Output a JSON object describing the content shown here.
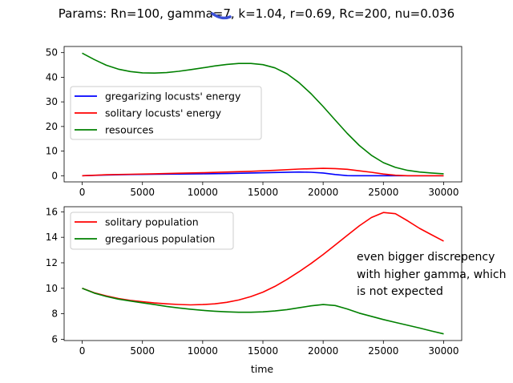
{
  "figure": {
    "suptitle": "Params: Rn=100, gamma=7, k=1.04, r=0.69, Rc=200, nu=0.036",
    "annotation": [
      "even bigger discrepency",
      "with higher gamma, which",
      "is not expected"
    ],
    "scribble_color": "#3a4fd6"
  },
  "chart_data": [
    {
      "type": "line",
      "title": "",
      "xlabel": "",
      "ylabel": "",
      "xlim": [
        -1500,
        31500
      ],
      "ylim": [
        -2.5,
        52.5
      ],
      "xticks": [
        0,
        5000,
        10000,
        15000,
        20000,
        25000,
        30000
      ],
      "yticks": [
        0,
        10,
        20,
        30,
        40,
        50
      ],
      "grid": false,
      "legend_position": "center-left",
      "series": [
        {
          "name": "gregarizing locusts' energy",
          "color": "#0000ff",
          "x": [
            0,
            2000,
            4000,
            6000,
            8000,
            10000,
            12000,
            14000,
            16000,
            18000,
            19000,
            20000,
            21000,
            22000,
            22500,
            23000,
            25000,
            27000,
            30000
          ],
          "y": [
            0,
            0.3,
            0.5,
            0.6,
            0.7,
            0.8,
            0.9,
            1.1,
            1.3,
            1.5,
            1.4,
            1.1,
            0.5,
            0.05,
            0,
            0,
            0,
            0,
            0
          ]
        },
        {
          "name": "solitary locusts' energy",
          "color": "#ff0000",
          "x": [
            0,
            2000,
            4000,
            6000,
            8000,
            10000,
            12000,
            14000,
            16000,
            18000,
            20000,
            21000,
            22000,
            23000,
            24000,
            25000,
            26000,
            27000,
            28000,
            30000
          ],
          "y": [
            0,
            0.4,
            0.6,
            0.8,
            1.0,
            1.2,
            1.5,
            1.8,
            2.2,
            2.7,
            3.0,
            2.9,
            2.6,
            2.0,
            1.4,
            0.7,
            0.2,
            0,
            0,
            0
          ]
        },
        {
          "name": "resources",
          "color": "#008000",
          "x": [
            0,
            1000,
            2000,
            3000,
            4000,
            5000,
            6000,
            7000,
            8000,
            9000,
            10000,
            11000,
            12000,
            13000,
            14000,
            15000,
            16000,
            17000,
            18000,
            19000,
            20000,
            21000,
            22000,
            23000,
            24000,
            25000,
            26000,
            27000,
            28000,
            29000,
            30000
          ],
          "y": [
            49.8,
            47.2,
            44.9,
            43.3,
            42.3,
            41.8,
            41.7,
            41.9,
            42.4,
            43.1,
            43.8,
            44.6,
            45.2,
            45.6,
            45.6,
            45.1,
            43.8,
            41.4,
            37.8,
            33.3,
            28.1,
            22.6,
            17.2,
            12.3,
            8.3,
            5.3,
            3.4,
            2.2,
            1.5,
            1.1,
            0.8
          ]
        }
      ]
    },
    {
      "type": "line",
      "title": "",
      "xlabel": "time",
      "ylabel": "",
      "xlim": [
        -1500,
        31500
      ],
      "ylim": [
        5.9,
        16.4
      ],
      "xticks": [
        0,
        5000,
        10000,
        15000,
        20000,
        25000,
        30000
      ],
      "yticks": [
        6,
        8,
        10,
        12,
        14,
        16
      ],
      "grid": false,
      "legend_position": "top-left",
      "series": [
        {
          "name": "solitary population",
          "color": "#ff0000",
          "x": [
            0,
            1000,
            2000,
            3000,
            4000,
            5000,
            6000,
            7000,
            8000,
            9000,
            10000,
            11000,
            12000,
            13000,
            14000,
            15000,
            16000,
            17000,
            18000,
            19000,
            20000,
            21000,
            22000,
            23000,
            24000,
            25000,
            26000,
            27000,
            28000,
            29000,
            30000
          ],
          "y": [
            10.0,
            9.65,
            9.4,
            9.2,
            9.05,
            8.95,
            8.85,
            8.78,
            8.73,
            8.7,
            8.72,
            8.78,
            8.9,
            9.08,
            9.35,
            9.7,
            10.15,
            10.7,
            11.3,
            11.95,
            12.65,
            13.4,
            14.15,
            14.9,
            15.55,
            15.95,
            15.85,
            15.3,
            14.7,
            14.2,
            13.7
          ]
        },
        {
          "name": "gregarious population",
          "color": "#008000",
          "x": [
            0,
            1000,
            2000,
            3000,
            4000,
            5000,
            6000,
            7000,
            8000,
            9000,
            10000,
            11000,
            12000,
            13000,
            14000,
            15000,
            16000,
            17000,
            18000,
            19000,
            20000,
            21000,
            22000,
            23000,
            24000,
            25000,
            26000,
            27000,
            28000,
            29000,
            30000
          ],
          "y": [
            10.0,
            9.62,
            9.36,
            9.15,
            9.0,
            8.86,
            8.72,
            8.58,
            8.46,
            8.36,
            8.27,
            8.2,
            8.15,
            8.12,
            8.12,
            8.15,
            8.22,
            8.33,
            8.47,
            8.62,
            8.72,
            8.65,
            8.38,
            8.05,
            7.8,
            7.55,
            7.32,
            7.1,
            6.88,
            6.65,
            6.42
          ]
        }
      ]
    }
  ]
}
